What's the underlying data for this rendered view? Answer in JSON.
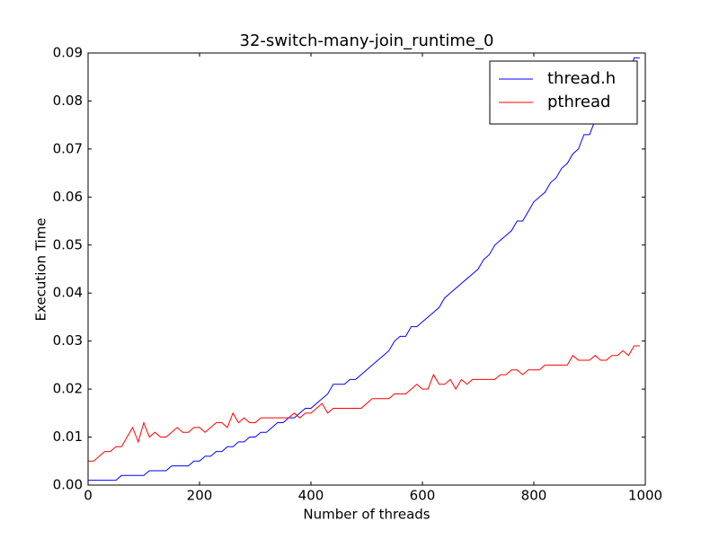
{
  "chart_data": {
    "type": "line",
    "title": "32-switch-many-join_runtime_0",
    "x_label": "Number of threads",
    "y_label": "Execution Time",
    "x": [
      0,
      10,
      20,
      30,
      40,
      50,
      60,
      70,
      80,
      90,
      100,
      110,
      120,
      130,
      140,
      150,
      160,
      170,
      180,
      190,
      200,
      210,
      220,
      230,
      240,
      250,
      260,
      270,
      280,
      290,
      300,
      310,
      320,
      330,
      340,
      350,
      360,
      370,
      380,
      390,
      400,
      410,
      420,
      430,
      440,
      450,
      460,
      470,
      480,
      490,
      500,
      510,
      520,
      530,
      540,
      550,
      560,
      570,
      580,
      590,
      600,
      610,
      620,
      630,
      640,
      650,
      660,
      670,
      680,
      690,
      700,
      710,
      720,
      730,
      740,
      750,
      760,
      770,
      780,
      790,
      800,
      810,
      820,
      830,
      840,
      850,
      860,
      870,
      880,
      890,
      900,
      910,
      920,
      930,
      940,
      950,
      960,
      970,
      980,
      990
    ],
    "series": [
      {
        "name": "thread.h",
        "color": "#0000ff",
        "values": [
          0.001,
          0.001,
          0.001,
          0.001,
          0.001,
          0.001,
          0.002,
          0.002,
          0.002,
          0.002,
          0.002,
          0.003,
          0.003,
          0.003,
          0.003,
          0.004,
          0.004,
          0.004,
          0.004,
          0.005,
          0.005,
          0.006,
          0.006,
          0.007,
          0.007,
          0.008,
          0.008,
          0.009,
          0.009,
          0.01,
          0.01,
          0.011,
          0.011,
          0.012,
          0.013,
          0.013,
          0.014,
          0.014,
          0.015,
          0.016,
          0.016,
          0.017,
          0.018,
          0.019,
          0.021,
          0.021,
          0.021,
          0.022,
          0.022,
          0.023,
          0.024,
          0.025,
          0.026,
          0.027,
          0.028,
          0.03,
          0.031,
          0.031,
          0.033,
          0.033,
          0.034,
          0.035,
          0.036,
          0.037,
          0.039,
          0.04,
          0.041,
          0.042,
          0.043,
          0.044,
          0.045,
          0.047,
          0.048,
          0.05,
          0.051,
          0.052,
          0.053,
          0.055,
          0.055,
          0.057,
          0.059,
          0.06,
          0.061,
          0.063,
          0.064,
          0.066,
          0.067,
          0.069,
          0.07,
          0.073,
          0.073,
          0.076,
          0.076,
          0.077,
          0.079,
          0.08,
          0.082,
          0.085,
          0.089,
          0.089
        ]
      },
      {
        "name": "pthread",
        "color": "#ff0000",
        "values": [
          0.005,
          0.005,
          0.006,
          0.007,
          0.007,
          0.008,
          0.008,
          0.01,
          0.012,
          0.009,
          0.013,
          0.01,
          0.011,
          0.01,
          0.01,
          0.011,
          0.012,
          0.011,
          0.011,
          0.012,
          0.012,
          0.011,
          0.012,
          0.013,
          0.013,
          0.012,
          0.015,
          0.013,
          0.014,
          0.013,
          0.013,
          0.014,
          0.014,
          0.014,
          0.014,
          0.014,
          0.014,
          0.015,
          0.014,
          0.015,
          0.015,
          0.016,
          0.017,
          0.015,
          0.016,
          0.016,
          0.016,
          0.016,
          0.016,
          0.016,
          0.017,
          0.018,
          0.018,
          0.018,
          0.018,
          0.019,
          0.019,
          0.019,
          0.02,
          0.021,
          0.02,
          0.02,
          0.023,
          0.021,
          0.021,
          0.022,
          0.02,
          0.022,
          0.021,
          0.022,
          0.022,
          0.022,
          0.022,
          0.022,
          0.023,
          0.023,
          0.024,
          0.024,
          0.023,
          0.024,
          0.024,
          0.024,
          0.025,
          0.025,
          0.025,
          0.025,
          0.025,
          0.027,
          0.026,
          0.026,
          0.026,
          0.027,
          0.026,
          0.026,
          0.027,
          0.027,
          0.028,
          0.027,
          0.029,
          0.029
        ]
      }
    ],
    "xlim": [
      0,
      1000
    ],
    "xticks": [
      0,
      200,
      400,
      600,
      800,
      1000
    ],
    "ylim": [
      0,
      0.09
    ],
    "yticks": [
      {
        "value": 0,
        "label": "0.00"
      },
      {
        "value": 0.01,
        "label": "0.01"
      },
      {
        "value": 0.02,
        "label": "0.02"
      },
      {
        "value": 0.03,
        "label": "0.03"
      },
      {
        "value": 0.04,
        "label": "0.04"
      },
      {
        "value": 0.05,
        "label": "0.05"
      },
      {
        "value": 0.06,
        "label": "0.06"
      },
      {
        "value": 0.07,
        "label": "0.07"
      },
      {
        "value": 0.08,
        "label": "0.08"
      },
      {
        "value": 0.09,
        "label": "0.09"
      }
    ],
    "grid": false,
    "legend": "upper right"
  }
}
